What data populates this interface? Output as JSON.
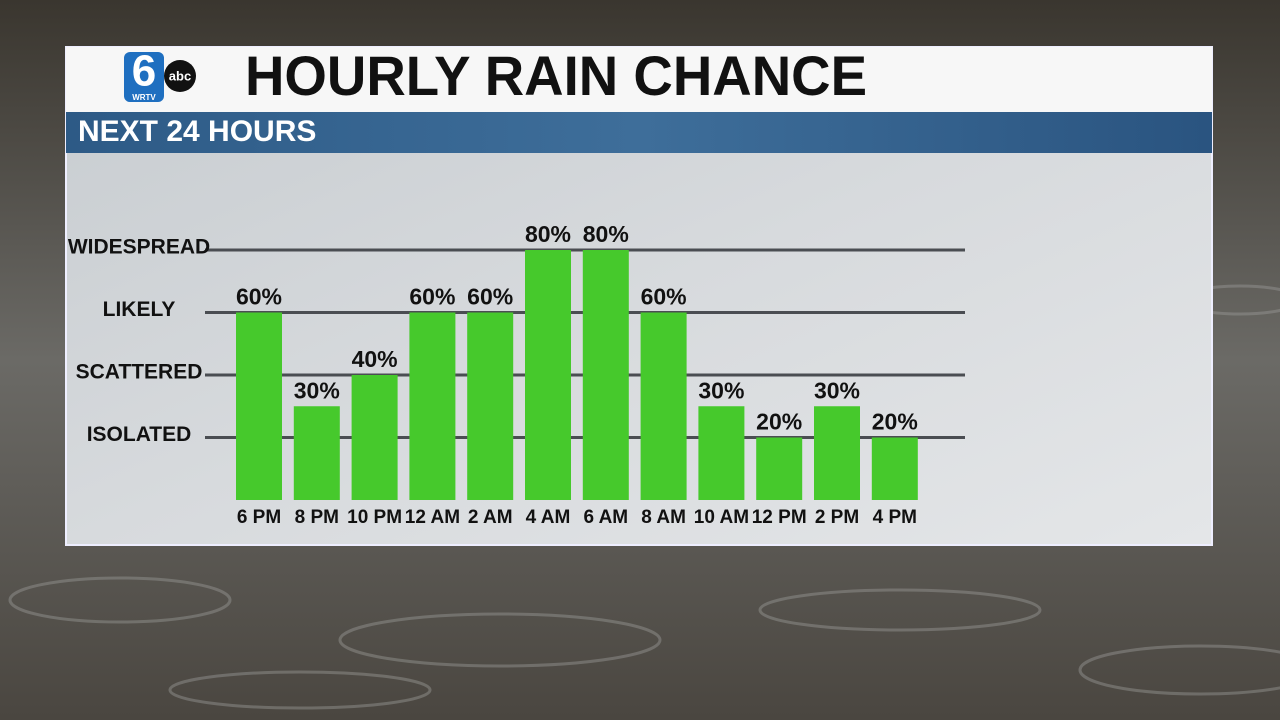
{
  "logo": {
    "number": "6",
    "network": "abc",
    "call_sign": "WRTV"
  },
  "chart_data": {
    "type": "bar",
    "title": "HOURLY RAIN CHANCE",
    "subtitle": "NEXT 24 HOURS",
    "categories": [
      "6 PM",
      "8 PM",
      "10 PM",
      "12 AM",
      "2 AM",
      "4 AM",
      "6 AM",
      "8 AM",
      "10 AM",
      "12 PM",
      "2 PM",
      "4 PM"
    ],
    "values": [
      60,
      30,
      40,
      60,
      60,
      80,
      80,
      60,
      30,
      20,
      30,
      20
    ],
    "value_labels": [
      "60%",
      "30%",
      "40%",
      "60%",
      "60%",
      "80%",
      "80%",
      "60%",
      "30%",
      "20%",
      "30%",
      "20%"
    ],
    "color": "#46c92c",
    "ylim": [
      0,
      80
    ],
    "yticks": [
      {
        "value": 20,
        "label": "ISOLATED"
      },
      {
        "value": 40,
        "label": "SCATTERED"
      },
      {
        "value": 60,
        "label": "LIKELY"
      },
      {
        "value": 80,
        "label": "WIDESPREAD"
      }
    ],
    "grid": true
  }
}
